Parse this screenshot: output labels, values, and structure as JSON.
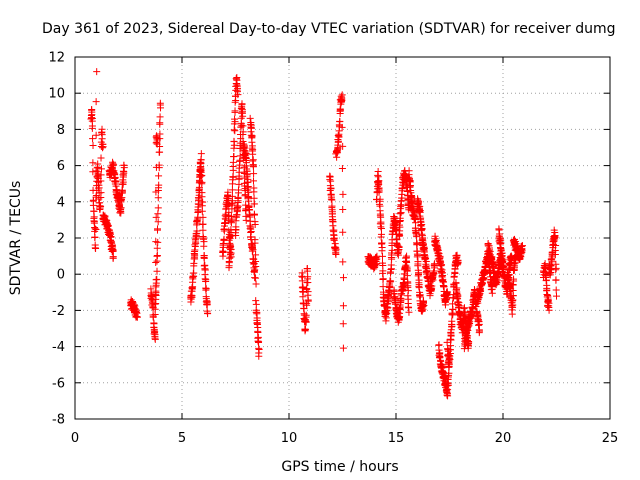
{
  "chart_data": {
    "type": "scatter",
    "title": "Day 361 of 2023, Sidereal Day-to-day VTEC variation (SDTVAR) for receiver dumg",
    "xlabel": "GPS time / hours",
    "ylabel": "SDTVAR / TECUs",
    "xlim": [
      0,
      25
    ],
    "ylim": [
      -8,
      12
    ],
    "xticks": [
      0,
      5,
      10,
      15,
      20,
      25
    ],
    "yticks": [
      -8,
      -6,
      -4,
      -2,
      0,
      2,
      4,
      6,
      8,
      10,
      12
    ],
    "grid": true,
    "marker": "plus",
    "color": "#ff0000",
    "segments": [
      {
        "t0": 0.75,
        "t1": 1.0,
        "v": [
          8.5,
          9.0,
          8.0,
          4.0,
          3.0,
          2.5,
          1.2,
          11.2
        ]
      },
      {
        "t0": 1.0,
        "t1": 1.3,
        "v": [
          4.5,
          6.0,
          5.0,
          3.5,
          4.0,
          8.0,
          7.0
        ]
      },
      {
        "t0": 1.3,
        "t1": 1.8,
        "v": [
          3.2,
          3.0,
          2.8,
          2.5,
          2.2,
          1.5,
          1.0
        ]
      },
      {
        "t0": 1.6,
        "t1": 2.3,
        "v": [
          5.5,
          6.0,
          4.5,
          3.5,
          6.0
        ]
      },
      {
        "t0": 2.6,
        "t1": 2.9,
        "v": [
          -1.6,
          -1.8,
          -2.0,
          -2.4
        ]
      },
      {
        "t0": 3.55,
        "t1": 3.85,
        "v": [
          -1.0,
          -1.5,
          -2.0,
          -3.0,
          -3.5,
          7.5,
          7.4
        ]
      },
      {
        "t0": 3.75,
        "t1": 4.0,
        "v": [
          -2.0,
          -1.0,
          0.0,
          2.0,
          4.0,
          6.0,
          8.0,
          9.5
        ]
      },
      {
        "t0": 5.4,
        "t1": 5.9,
        "v": [
          -1.5,
          -1.0,
          0.0,
          1.0,
          2.0,
          3.0,
          4.0,
          5.5,
          6.5
        ]
      },
      {
        "t0": 5.8,
        "t1": 6.2,
        "v": [
          4.5,
          6.0,
          5.5,
          3.0,
          1.0,
          0.0,
          -1.5,
          -2.0
        ]
      },
      {
        "t0": 6.9,
        "t1": 7.3,
        "v": [
          1.0,
          2.5,
          3.5,
          4.5,
          2.0,
          1.0
        ]
      },
      {
        "t0": 7.2,
        "t1": 7.6,
        "v": [
          0.5,
          1.5,
          3.0,
          5.0,
          7.0,
          9.0,
          10.8,
          10.0
        ]
      },
      {
        "t0": 7.5,
        "t1": 8.0,
        "v": [
          2.0,
          3.5,
          4.0,
          6.0,
          8.0,
          9.5,
          7.0,
          5.0,
          3.0
        ]
      },
      {
        "t0": 7.9,
        "t1": 8.4,
        "v": [
          7.0,
          6.5,
          5.0,
          3.5,
          2.0,
          1.0,
          0.0
        ]
      },
      {
        "t0": 8.2,
        "t1": 8.6,
        "v": [
          8.5,
          7.5,
          6.0,
          3.0,
          -2.0,
          -3.0,
          -4.5
        ]
      },
      {
        "t0": 10.6,
        "t1": 10.9,
        "v": [
          0.0,
          -1.0,
          -2.0,
          -3.0,
          -2.5,
          0.5,
          -1.5
        ]
      },
      {
        "t0": 11.9,
        "t1": 12.2,
        "v": [
          5.5,
          4.5,
          3.5,
          2.5,
          1.5,
          1.2
        ]
      },
      {
        "t0": 12.2,
        "t1": 12.55,
        "v": [
          6.5,
          7.0,
          8.0,
          9.5,
          9.8,
          -4.0
        ]
      },
      {
        "t0": 13.7,
        "t1": 14.1,
        "v": [
          0.8,
          0.7,
          0.5,
          0.8
        ]
      },
      {
        "t0": 14.1,
        "t1": 14.4,
        "v": [
          4.0,
          5.5,
          4.5,
          3.0,
          1.5,
          -0.5
        ]
      },
      {
        "t0": 14.4,
        "t1": 14.9,
        "v": [
          -1.0,
          -2.0,
          -2.5,
          -1.5,
          -1.0,
          0.0,
          2.0,
          3.0
        ]
      },
      {
        "t0": 14.9,
        "t1": 15.6,
        "v": [
          3.0,
          2.5,
          1.0,
          3.0,
          5.0,
          5.5,
          5.0,
          3.5
        ]
      },
      {
        "t0": 14.9,
        "t1": 15.6,
        "v": [
          -1.0,
          -2.0,
          -2.5,
          -1.0,
          -0.5,
          1.0,
          -2.0
        ]
      },
      {
        "t0": 15.6,
        "t1": 16.3,
        "v": [
          5.5,
          4.5,
          3.5,
          3.0,
          1.0,
          -1.0,
          -2.0,
          -1.5
        ]
      },
      {
        "t0": 16.0,
        "t1": 16.8,
        "v": [
          4.0,
          3.5,
          2.0,
          1.0,
          0.0,
          -1.0,
          -0.5,
          0.5
        ]
      },
      {
        "t0": 16.8,
        "t1": 17.4,
        "v": [
          2.0,
          1.5,
          1.0,
          0.5,
          -0.5,
          -1.5,
          -1.0
        ]
      },
      {
        "t0": 17.0,
        "t1": 17.5,
        "v": [
          -4.0,
          -5.0,
          -5.5,
          -6.0,
          -6.5,
          -4.5
        ]
      },
      {
        "t0": 17.4,
        "t1": 17.9,
        "v": [
          -4.0,
          -5.0,
          -3.5,
          -2.0,
          0.0,
          1.0,
          0.5
        ]
      },
      {
        "t0": 17.8,
        "t1": 18.4,
        "v": [
          -0.5,
          -1.5,
          -2.5,
          -3.0,
          -2.0,
          -3.5,
          -4.0
        ]
      },
      {
        "t0": 18.2,
        "t1": 18.9,
        "v": [
          -4.0,
          -3.0,
          -2.5,
          -2.0,
          -1.0,
          -2.0,
          -3.0
        ]
      },
      {
        "t0": 18.8,
        "t1": 19.5,
        "v": [
          -1.5,
          -1.0,
          -0.5,
          0.0,
          0.5,
          1.0,
          0.0,
          -1.0
        ]
      },
      {
        "t0": 19.3,
        "t1": 20.0,
        "v": [
          1.5,
          1.0,
          0.5,
          -0.5,
          0.0,
          1.0,
          0.0
        ]
      },
      {
        "t0": 19.8,
        "t1": 20.4,
        "v": [
          2.3,
          1.5,
          0.5,
          -0.5,
          -1.0,
          0.5,
          1.0
        ]
      },
      {
        "t0": 20.2,
        "t1": 20.6,
        "v": [
          0.0,
          -0.5,
          -1.0,
          -2.0,
          0.5,
          1.0
        ]
      },
      {
        "t0": 20.5,
        "t1": 20.9,
        "v": [
          1.8,
          1.5,
          1.2,
          1.0,
          1.5
        ]
      },
      {
        "t0": 21.9,
        "t1": 22.15,
        "v": [
          0.0,
          0.5,
          -0.5,
          -1.5,
          -1.8
        ]
      },
      {
        "t0": 22.15,
        "t1": 22.5,
        "v": [
          0.5,
          0.0,
          1.0,
          2.0,
          2.3,
          -1.0
        ]
      }
    ]
  }
}
